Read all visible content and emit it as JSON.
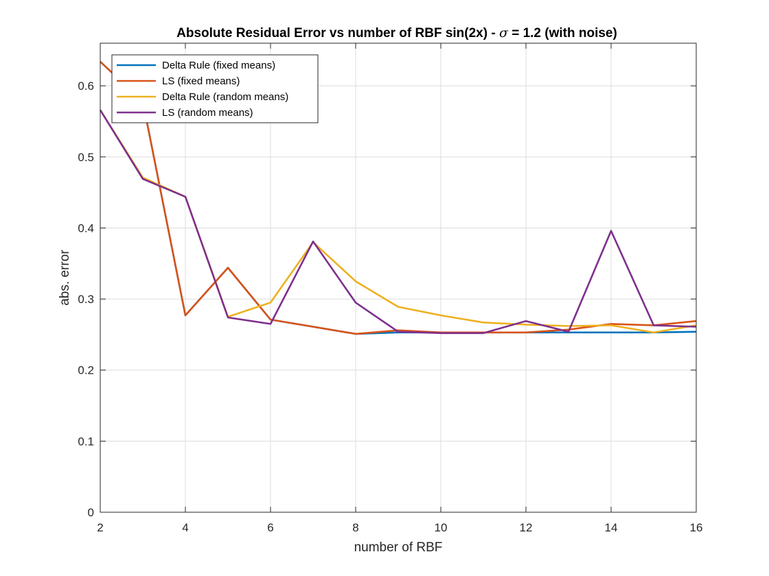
{
  "chart_data": {
    "type": "line",
    "title_prefix": "Absolute Residual Error vs number of RBF sin(2x) - ",
    "title_symbol": "σ",
    "title_suffix": " = 1.2 (with noise)",
    "xlabel": "number of RBF",
    "ylabel": "abs. error",
    "xlim": [
      2,
      16
    ],
    "ylim": [
      0,
      0.66
    ],
    "xticks": [
      2,
      4,
      6,
      8,
      10,
      12,
      14,
      16
    ],
    "yticks": [
      0,
      0.1,
      0.2,
      0.3,
      0.4,
      0.5,
      0.6
    ],
    "ytick_labels": [
      "0",
      "0.1",
      "0.2",
      "0.3",
      "0.4",
      "0.5",
      "0.6"
    ],
    "x": [
      2,
      3,
      4,
      5,
      6,
      7,
      8,
      9,
      10,
      11,
      12,
      13,
      14,
      15,
      16
    ],
    "grid": true,
    "legend_position": "top-left",
    "series": [
      {
        "name": "Delta Rule (fixed means)",
        "color": "#0072BD",
        "values": [
          0.634,
          0.578,
          0.277,
          0.344,
          0.271,
          0.261,
          0.251,
          0.253,
          0.253,
          0.253,
          0.253,
          0.253,
          0.253,
          0.253,
          0.254
        ]
      },
      {
        "name": "LS (fixed means)",
        "color": "#D95319",
        "values": [
          0.634,
          0.578,
          0.277,
          0.344,
          0.271,
          0.261,
          0.251,
          0.256,
          0.253,
          0.253,
          0.253,
          0.257,
          0.265,
          0.263,
          0.269
        ]
      },
      {
        "name": "Delta Rule (random means)",
        "color": "#EDB120",
        "values": [
          0.566,
          0.471,
          0.444,
          0.275,
          0.295,
          0.38,
          0.325,
          0.289,
          0.277,
          0.267,
          0.264,
          0.262,
          0.263,
          0.253,
          0.263
        ]
      },
      {
        "name": "LS (random means)",
        "color": "#7E2F8E",
        "values": [
          0.566,
          0.469,
          0.444,
          0.274,
          0.265,
          0.381,
          0.295,
          0.254,
          0.252,
          0.252,
          0.269,
          0.254,
          0.396,
          0.263,
          0.261
        ]
      }
    ]
  }
}
